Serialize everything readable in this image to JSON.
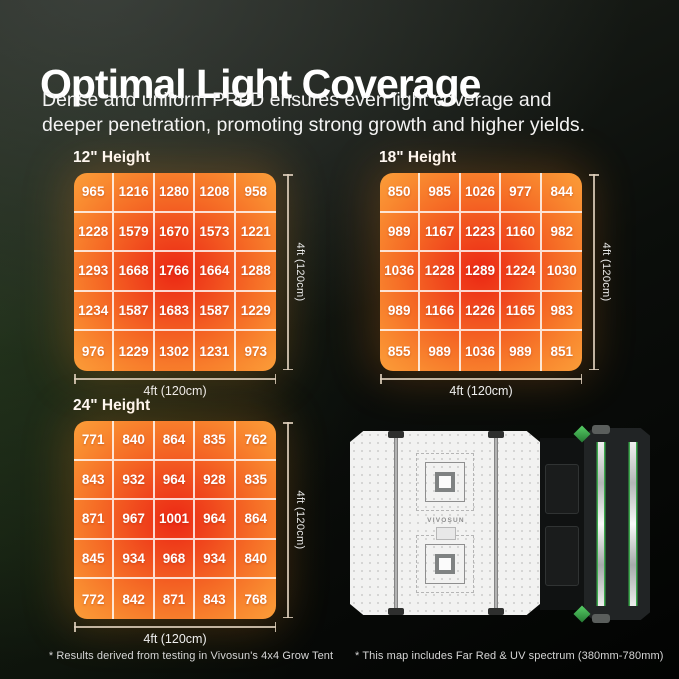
{
  "header": {
    "title": "Optimal Light Coverage",
    "subtitle_line1": "Dense and uniform PPFD ensures even light coverage and",
    "subtitle_line2": "deeper penetration, promoting strong growth and higher yields."
  },
  "chart_data": [
    {
      "type": "heatmap",
      "title": "12\" Height",
      "x_axis_label": "4ft (120cm)",
      "y_axis_label": "4ft (120cm)",
      "rows": [
        [
          965,
          1216,
          1280,
          1208,
          958
        ],
        [
          1228,
          1579,
          1670,
          1573,
          1221
        ],
        [
          1293,
          1668,
          1766,
          1664,
          1288
        ],
        [
          1234,
          1587,
          1683,
          1587,
          1229
        ],
        [
          976,
          1229,
          1302,
          1231,
          973
        ]
      ]
    },
    {
      "type": "heatmap",
      "title": "18\" Height",
      "x_axis_label": "4ft (120cm)",
      "y_axis_label": "4ft (120cm)",
      "rows": [
        [
          850,
          985,
          1026,
          977,
          844
        ],
        [
          989,
          1167,
          1223,
          1160,
          982
        ],
        [
          1036,
          1228,
          1289,
          1224,
          1030
        ],
        [
          989,
          1166,
          1226,
          1165,
          983
        ],
        [
          855,
          989,
          1036,
          989,
          851
        ]
      ]
    },
    {
      "type": "heatmap",
      "title": "24\" Height",
      "x_axis_label": "4ft (120cm)",
      "y_axis_label": "4ft (120cm)",
      "rows": [
        [
          771,
          840,
          864,
          835,
          762
        ],
        [
          843,
          932,
          964,
          928,
          835
        ],
        [
          871,
          967,
          1001,
          964,
          864
        ],
        [
          845,
          934,
          968,
          934,
          840
        ],
        [
          772,
          842,
          871,
          843,
          768
        ]
      ]
    }
  ],
  "footnotes": {
    "left": "* Results derived from testing in Vivosun's 4x4 Grow Tent",
    "right": "* This map includes Far Red & UV spectrum (380mm-780mm)"
  },
  "product": {
    "brand_label": "VIVOSUN"
  },
  "colors": {
    "heat_center": "#ec2914",
    "heat_edge": "#fcb24a",
    "accent_green": "#3da84d",
    "background_green": "#1c2a1c"
  }
}
